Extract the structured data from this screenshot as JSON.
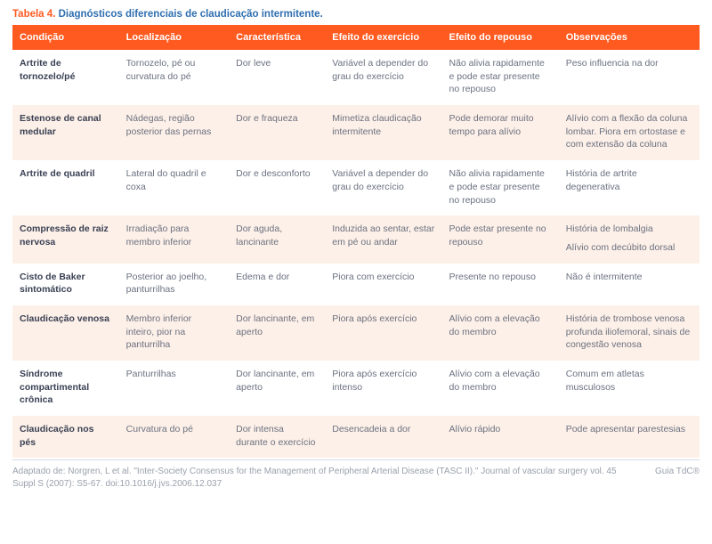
{
  "caption": {
    "number": "Tabela 4.",
    "title": "Diagnósticos diferenciais de claudicação intermitente."
  },
  "columns": {
    "width_pct": [
      15.5,
      16,
      14,
      17,
      17,
      20.5
    ],
    "headers": [
      "Condição",
      "Localização",
      "Característica",
      "Efeito do exercício",
      "Efeito do repouso",
      "Observações"
    ]
  },
  "rows": [
    {
      "cond": "Artrite de tornozelo/pé",
      "loc": "Tornozelo, pé ou curvatura do pé",
      "car": "Dor leve",
      "ex": "Variável a depender do grau do exercício",
      "rep": "Não alivia rapidamente e pode estar presente no repouso",
      "obs": [
        "Peso influencia na dor"
      ]
    },
    {
      "cond": "Estenose de canal medular",
      "loc": "Nádegas, região posterior das pernas",
      "car": "Dor e fraqueza",
      "ex": "Mimetiza claudicação intermitente",
      "rep": "Pode demorar muito tempo para alívio",
      "obs": [
        "Alívio com a flexão da coluna lombar. Piora em ortostase e com extensão da coluna"
      ]
    },
    {
      "cond": "Artrite de quadril",
      "loc": "Lateral do quadril e coxa",
      "car": "Dor e desconforto",
      "ex": "Variável a depender do grau do exercício",
      "rep": "Não alivia rapidamente e pode estar presente no repouso",
      "obs": [
        "História de artrite degenerativa"
      ]
    },
    {
      "cond": "Compressão de raiz nervosa",
      "loc": "Irradiação para membro inferior",
      "car": "Dor aguda, lancinante",
      "ex": "Induzida ao sentar, estar em pé ou andar",
      "rep": "Pode estar presente no repouso",
      "obs": [
        "História de lombalgia",
        "Alívio com decúbito dorsal"
      ]
    },
    {
      "cond": "Cisto de Baker sintomático",
      "loc": "Posterior ao joelho, panturrilhas",
      "car": "Edema e dor",
      "ex": "Piora com exercício",
      "rep": "Presente no repouso",
      "obs": [
        "Não é intermitente"
      ]
    },
    {
      "cond": "Claudicação venosa",
      "loc": "Membro inferior inteiro, pior na panturrilha",
      "car": "Dor lancinante, em aperto",
      "ex": "Piora após exercício",
      "rep": "Alívio com a elevação do membro",
      "obs": [
        "História de trombose venosa profunda iliofemoral, sinais de congestão venosa"
      ]
    },
    {
      "cond": "Síndrome compartimental crônica",
      "loc": "Panturrilhas",
      "car": "Dor lancinante, em aperto",
      "ex": "Piora após exercício intenso",
      "rep": "Alívio com a elevação do membro",
      "obs": [
        "Comum em atletas musculosos"
      ]
    },
    {
      "cond": "Claudicação nos pés",
      "loc": "Curvatura do pé",
      "car": "Dor intensa durante o exercício",
      "ex": "Desencadeia a dor",
      "rep": "Alívio rápido",
      "obs": [
        "Pode apresentar parestesias"
      ]
    }
  ],
  "footer": {
    "source": "Adaptado de: Norgren, L et al. \"Inter-Society Consensus for the Management of Peripheral Arterial Disease (TASC II).\" Journal of vascular surgery vol. 45 Suppl S (2007): S5-67. doi:10.1016/j.jvs.2006.12.037",
    "brand": "Guia TdC®"
  },
  "colors": {
    "accent": "#ff5a1f",
    "link_title": "#2f6fb0",
    "row_alt_bg": "#fdf0e8",
    "text_body": "#6b7180",
    "text_strong": "#3a4154",
    "footer_text": "#9aa0ab",
    "divider": "#d9dce2"
  }
}
